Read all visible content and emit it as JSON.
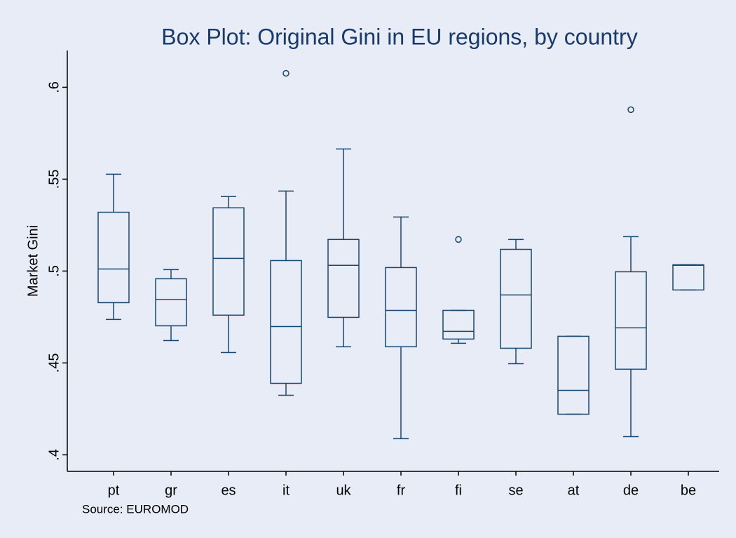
{
  "chart_data": {
    "type": "box",
    "title": "Box Plot: Original Gini in EU regions, by country",
    "y_label": "Market Gini",
    "source": "Source: EUROMOD",
    "color": "#1a476f",
    "categories": [
      "pt",
      "gr",
      "es",
      "it",
      "uk",
      "fr",
      "fi",
      "se",
      "at",
      "de",
      "be"
    ],
    "min": [
      0.4737,
      0.4622,
      0.4557,
      0.4324,
      0.4588,
      0.4088,
      0.4607,
      0.4496,
      0.4221,
      0.4099,
      0.4897
    ],
    "q1": [
      0.4828,
      0.4702,
      0.476,
      0.4389,
      0.4748,
      0.4588,
      0.463,
      0.458,
      0.4221,
      0.4466,
      0.4897
    ],
    "median": [
      0.5011,
      0.4844,
      0.5069,
      0.4698,
      0.5031,
      0.4786,
      0.4672,
      0.487,
      0.4351,
      0.4691,
      0.5031
    ],
    "q3": [
      0.532,
      0.4958,
      0.5344,
      0.5057,
      0.5172,
      0.5019,
      0.4786,
      0.5118,
      0.4645,
      0.4996,
      0.5034
    ],
    "max": [
      0.5527,
      0.5008,
      0.5405,
      0.5435,
      0.5664,
      0.5294,
      0.4786,
      0.5172,
      0.4645,
      0.5187,
      0.5034
    ],
    "outliers": [
      [],
      [],
      [],
      [
        0.6076
      ],
      [],
      [],
      [
        0.5172
      ],
      [],
      [],
      [
        0.5878
      ],
      []
    ],
    "ylim": [
      0.391,
      0.62
    ],
    "yticks": [
      {
        "value": 0.4,
        "label": ".4"
      },
      {
        "value": 0.45,
        "label": ".45"
      },
      {
        "value": 0.5,
        "label": ".5"
      },
      {
        "value": 0.55,
        "label": ".55"
      },
      {
        "value": 0.6,
        "label": ".6"
      }
    ]
  }
}
